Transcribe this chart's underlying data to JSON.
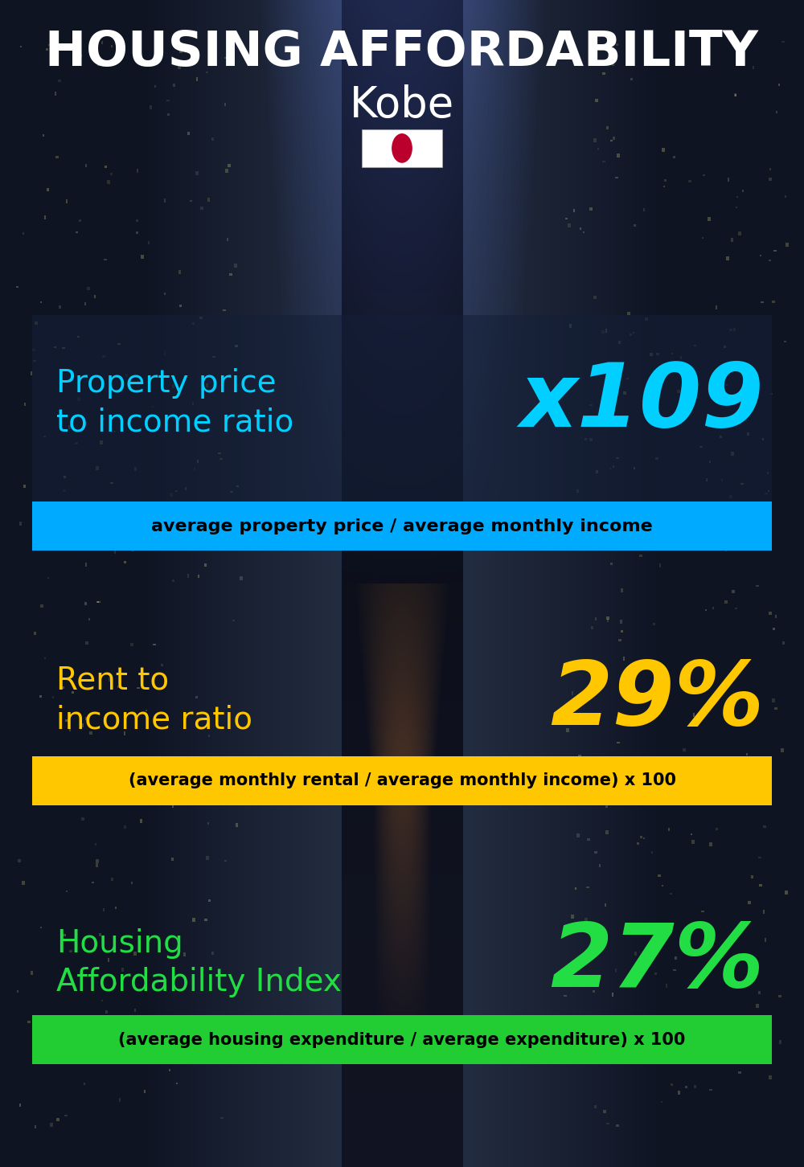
{
  "title_line1": "HOUSING AFFORDABILITY",
  "title_line2": "Kobe",
  "bg_color": "#080e18",
  "section1_label": "Property price\nto income ratio",
  "section1_value": "x109",
  "section1_label_color": "#00cfff",
  "section1_value_color": "#00cfff",
  "section1_bar_text": "average property price / average monthly income",
  "section1_bar_color": "#00aaff",
  "section2_label": "Rent to\nincome ratio",
  "section2_value": "29%",
  "section2_label_color": "#ffc700",
  "section2_value_color": "#ffc700",
  "section2_bar_text": "(average monthly rental / average monthly income) x 100",
  "section2_bar_color": "#ffc700",
  "section3_label": "Housing\nAffordability Index",
  "section3_value": "27%",
  "section3_label_color": "#22dd44",
  "section3_value_color": "#22dd44",
  "section3_bar_text": "(average housing expenditure / average expenditure) x 100",
  "section3_bar_color": "#22cc33",
  "flag_color": "#bc002d"
}
